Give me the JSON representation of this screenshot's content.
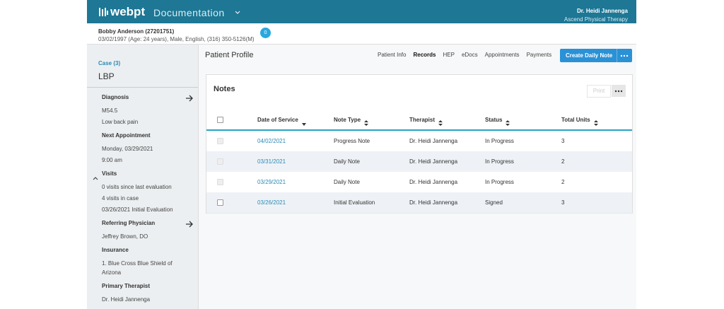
{
  "header": {
    "logo": "webpt",
    "app": "Documentation",
    "user": "Dr. Heidi Jannenga",
    "clinic": "Ascend Physical Therapy"
  },
  "patient": {
    "name": "Bobby Anderson (27201751)",
    "details": "03/02/1997 (Age: 24 years), Male, English, (316) 350-5126(M)",
    "badge": "0"
  },
  "sidebar": {
    "case_label": "Case (3)",
    "case_name": "LBP",
    "sections": [
      {
        "title": "Diagnosis",
        "lines": [
          "M54.5",
          "Low back pain"
        ]
      },
      {
        "title": "Next Appointment",
        "lines": [
          "Monday, 03/29/2021",
          "9:00 am"
        ]
      },
      {
        "title": "Visits",
        "lines": [
          "0 visits since last evaluation",
          "4 visits in case",
          "03/26/2021 Initial Evaluation"
        ]
      },
      {
        "title": "Referring Physician",
        "lines": [
          "Jeffrey Brown, DO"
        ]
      },
      {
        "title": "Insurance",
        "lines": [
          "1. Blue Cross Blue Shield of Arizona"
        ]
      },
      {
        "title": "Primary Therapist",
        "lines": [
          "Dr. Heidi Jannenga"
        ]
      }
    ]
  },
  "main": {
    "title": "Patient Profile",
    "nav": [
      "Patient Info",
      "Records",
      "HEP",
      "eDocs",
      "Appointments",
      "Payments"
    ],
    "button": "Create Daily Note"
  },
  "notes": {
    "title": "Notes",
    "print": "Print",
    "table": {
      "columns": [
        "Date of Service",
        "Note Type",
        "Therapist",
        "Status",
        "Total Units"
      ],
      "rows": [
        [
          "04/02/2021",
          "Progress Note",
          "Dr. Heidi Jannenga",
          "In Progress",
          "3"
        ],
        [
          "03/31/2021",
          "Daily Note",
          "Dr. Heidi Jannenga",
          "In Progress",
          "2"
        ],
        [
          "03/29/2021",
          "Daily Note",
          "Dr. Heidi Jannenga",
          "In Progress",
          "2"
        ],
        [
          "03/26/2021",
          "Initial Evaluation",
          "Dr. Heidi Jannenga",
          "Signed",
          "3"
        ]
      ]
    }
  }
}
